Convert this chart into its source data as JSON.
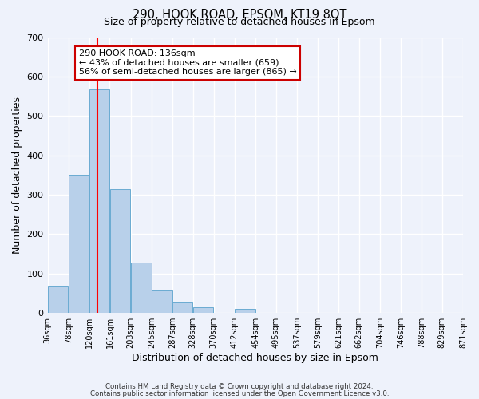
{
  "title1": "290, HOOK ROAD, EPSOM, KT19 8QT",
  "title2": "Size of property relative to detached houses in Epsom",
  "xlabel": "Distribution of detached houses by size in Epsom",
  "ylabel": "Number of detached properties",
  "bar_left_edges": [
    36,
    78,
    120,
    161,
    203,
    245,
    287,
    328,
    370,
    412,
    454,
    495,
    537,
    579,
    621,
    662,
    704,
    746,
    788,
    829
  ],
  "bar_widths": [
    42,
    42,
    41,
    42,
    42,
    42,
    41,
    42,
    42,
    42,
    41,
    42,
    42,
    42,
    41,
    42,
    42,
    42,
    41,
    42
  ],
  "bar_heights": [
    68,
    350,
    567,
    314,
    128,
    57,
    27,
    14,
    0,
    10,
    0,
    0,
    0,
    0,
    0,
    0,
    0,
    0,
    0,
    0
  ],
  "xtick_labels": [
    "36sqm",
    "78sqm",
    "120sqm",
    "161sqm",
    "203sqm",
    "245sqm",
    "287sqm",
    "328sqm",
    "370sqm",
    "412sqm",
    "454sqm",
    "495sqm",
    "537sqm",
    "579sqm",
    "621sqm",
    "662sqm",
    "704sqm",
    "746sqm",
    "788sqm",
    "829sqm",
    "871sqm"
  ],
  "xtick_positions": [
    36,
    78,
    120,
    161,
    203,
    245,
    287,
    328,
    370,
    412,
    454,
    495,
    537,
    579,
    621,
    662,
    704,
    746,
    788,
    829,
    871
  ],
  "ylim": [
    0,
    700
  ],
  "yticks": [
    0,
    100,
    200,
    300,
    400,
    500,
    600,
    700
  ],
  "xlim": [
    36,
    871
  ],
  "bar_color": "#b8d0ea",
  "bar_edge_color": "#6aabd2",
  "bg_color": "#eef2fb",
  "grid_color": "#ffffff",
  "red_line_x": 136,
  "annotation_title": "290 HOOK ROAD: 136sqm",
  "annotation_line1": "← 43% of detached houses are smaller (659)",
  "annotation_line2": "56% of semi-detached houses are larger (865) →",
  "annotation_box_facecolor": "#ffffff",
  "annotation_box_edgecolor": "#cc0000",
  "footer1": "Contains HM Land Registry data © Crown copyright and database right 2024.",
  "footer2": "Contains public sector information licensed under the Open Government Licence v3.0."
}
